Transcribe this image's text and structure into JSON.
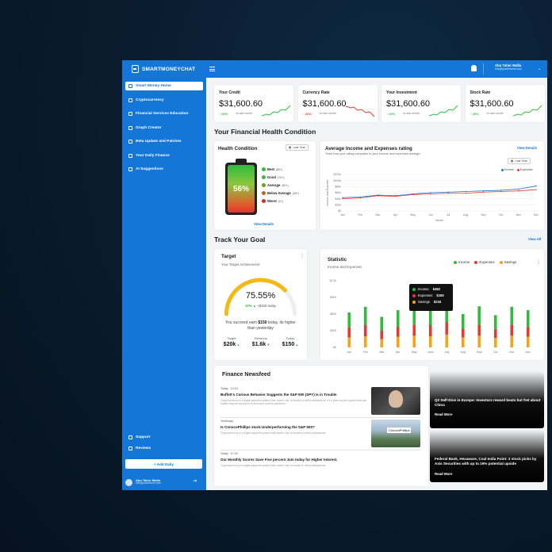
{
  "app": {
    "brand": "SMARTMONEYCHAT"
  },
  "topbar": {
    "user_name": "Abu Taher Molla",
    "user_email": "info@portfoliome.com"
  },
  "sidebar": {
    "items": [
      {
        "label": "Smart Money Home",
        "active": true
      },
      {
        "label": "Cryptocurrency"
      },
      {
        "label": "Financial Services Education"
      },
      {
        "label": "Graph Creator"
      },
      {
        "label": "Beta Update and Patches"
      },
      {
        "label": "Your Daily Finance"
      },
      {
        "label": "AI Suggestions"
      }
    ],
    "bottom_items": [
      {
        "label": "Support"
      },
      {
        "label": "Reviews"
      }
    ],
    "add_daily": "+ Add Daily",
    "user_name": "Abu Taher Molla",
    "user_email": "info@portfoliome.com"
  },
  "stats": [
    {
      "title": "Your Credit",
      "value": "$31,600.60",
      "delta": "20%",
      "vs": "vs last month",
      "trend": "up"
    },
    {
      "title": "Currency Rate",
      "value": "$31,600.60",
      "delta": "20%",
      "vs": "vs last month",
      "trend": "down"
    },
    {
      "title": "Your Investment",
      "value": "$31,600.60",
      "delta": "20%",
      "vs": "vs last month",
      "trend": "up"
    },
    {
      "title": "Stock Rate",
      "value": "$31,600.60",
      "delta": "20%",
      "vs": "vs last month",
      "trend": "up"
    }
  ],
  "health_section": {
    "title": "Your Financial Health Condition"
  },
  "health_card": {
    "title": "Health Condition",
    "filter": "Last Year",
    "battery_percent": "56%",
    "levels": [
      {
        "label": "Best",
        "range": "(80+)",
        "color": "#2dbd3a"
      },
      {
        "label": "Good",
        "range": "(70+)",
        "color": "#3fb54a"
      },
      {
        "label": "Average",
        "range": "(50+)",
        "color": "#6aa31f"
      },
      {
        "label": "Below Average",
        "range": "(30+)",
        "color": "#b26a1a"
      },
      {
        "label": "Worst",
        "range": "(0+)",
        "color": "#d32f2f"
      }
    ],
    "view_details": "View Details"
  },
  "income_card": {
    "title": "Average Income and Expenses rating",
    "subtitle": "Track how your rating compares to your income and expenses average.",
    "view_details": "View Details",
    "filter": "Last Year",
    "legend": [
      {
        "name": "Income",
        "color": "#1476d6"
      },
      {
        "name": "Expenses",
        "color": "#e53935"
      }
    ]
  },
  "goal_section": {
    "title": "Track Your Goal",
    "view_all": "View All"
  },
  "target_card": {
    "title": "Target",
    "subtitle": "Your Target Achievement",
    "percent": "75.55%",
    "progress": 0.7555,
    "delta": "10% ▲",
    "delta_amount": "+$150 today",
    "note_prefix": "You succeed earn ",
    "note_amount": "$150",
    "note_suffix": " today, its higher than yesterday",
    "targets": [
      {
        "label": "Target",
        "value": "$20k",
        "trend": "up"
      },
      {
        "label": "Revenue",
        "value": "$1.6k",
        "trend": "down"
      },
      {
        "label": "Today",
        "value": "$150",
        "trend": "up"
      }
    ]
  },
  "statistic_card": {
    "title": "Statistic",
    "subtitle": "Income and Expenses",
    "legend": [
      {
        "name": "Income",
        "color": "#2dbd3a"
      },
      {
        "name": "Expenses",
        "color": "#e53935"
      },
      {
        "name": "Savings",
        "color": "#f2a516"
      }
    ],
    "tooltip": [
      {
        "name": "Income",
        "value": "$482",
        "color": "#2dbd3a"
      },
      {
        "name": "Expenses",
        "value": "$150",
        "color": "#e53935"
      },
      {
        "name": "Savings",
        "value": "$234",
        "color": "#f2a516"
      }
    ]
  },
  "news": {
    "title": "Finance Newsfeed",
    "items": [
      {
        "meta": "Today · 10:10",
        "title": "Buffett's Curious Behavior Suggests the S&P 500 (SPY) Is in Trouble",
        "desc": "Cryptocurrency is a digital payment system that doesn't rely on banks to verify transactions. It's a peer-to-peer system that can enable anyone anywhere to send and receive payments."
      },
      {
        "meta": "Yesterday",
        "title": "Is ConocoPhillips stock Underperforming the S&P 500?",
        "desc": "Cryptocurrency is a digital payment system that doesn't rely on banks to verify transactions."
      },
      {
        "meta": "Today · 17:20",
        "title": "Our Monthly Scores Save Five percent Join today for Higher Interest.",
        "desc": "Cryptocurrency is a digital payment system that doesn't rely on banks to verify transactions."
      }
    ],
    "side": [
      {
        "title": "Q2 Self-Dive in Europe: Investors reward beats but fret about China",
        "more": "Read More"
      },
      {
        "title": "Federal Bank, Hexaware, Coal India Point: 3 stock picks by Axis Securities with up to 19% potential upside",
        "more": "Read More"
      }
    ],
    "thumb_logo": "ConocoPhillips"
  },
  "chart_data": [
    {
      "type": "line",
      "title": "Average Income and Expenses rating",
      "xlabel": "Month",
      "ylabel": "Income and Expense",
      "categories": [
        "Jan",
        "Feb",
        "Mar",
        "Apr",
        "May",
        "Jun",
        "Jul",
        "Aug",
        "Sep",
        "Oct",
        "Nov",
        "Dec"
      ],
      "yticks": [
        "$0",
        "$20k",
        "$40k",
        "$60k",
        "$80k",
        "$100k",
        "$120k"
      ],
      "ylim": [
        0,
        120
      ],
      "series": [
        {
          "name": "Income",
          "color": "#1476d6",
          "values": [
            44,
            46,
            52,
            50,
            56,
            60,
            62,
            64,
            66,
            68,
            72,
            82
          ]
        },
        {
          "name": "Expenses",
          "color": "#e53935",
          "values": [
            40,
            43,
            50,
            48,
            54,
            56,
            58,
            58,
            62,
            64,
            66,
            70
          ]
        }
      ]
    },
    {
      "type": "bar",
      "title": "Statistic",
      "categories": [
        "Jan",
        "Feb",
        "Mar",
        "Apr",
        "May",
        "June",
        "July",
        "Aug",
        "Sept",
        "Oct",
        "Nov",
        "Dec"
      ],
      "yticks": [
        "$0",
        "$300",
        "$600",
        "$900",
        "$1.2k"
      ],
      "ylim": [
        0,
        1200
      ],
      "series": [
        {
          "name": "Savings",
          "color": "#f2a516",
          "values": [
            180,
            200,
            150,
            190,
            210,
            200,
            230,
            180,
            210,
            170,
            210,
            190
          ]
        },
        {
          "name": "Expenses",
          "color": "#e53935",
          "values": [
            180,
            200,
            150,
            180,
            200,
            200,
            220,
            160,
            200,
            160,
            200,
            180
          ]
        },
        {
          "name": "Income",
          "color": "#2dbd3a",
          "values": [
            270,
            330,
            250,
            300,
            310,
            320,
            350,
            260,
            330,
            250,
            320,
            300
          ]
        }
      ]
    }
  ]
}
